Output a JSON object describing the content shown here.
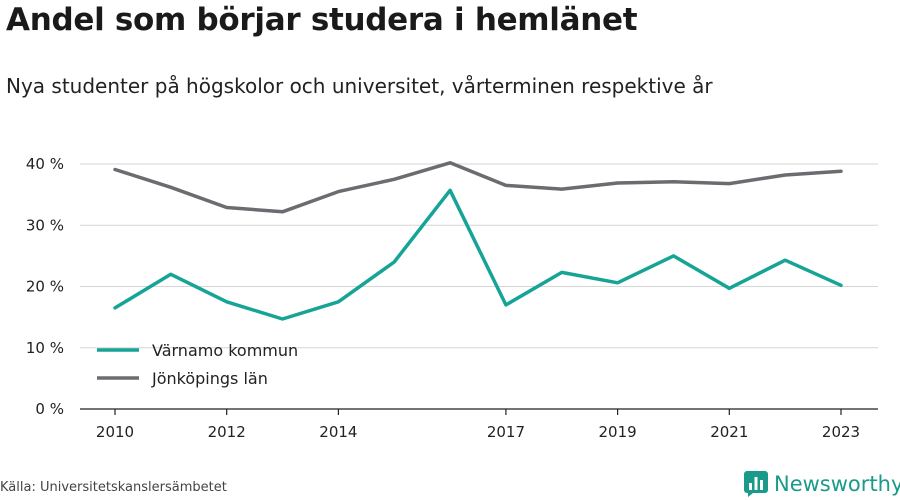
{
  "title": "Andel som börjar studera i hemlänet",
  "subtitle": "Nya studenter på högskolor och universitet, vårterminen respektive år",
  "source": "Källa: Universitetskanslersämbetet",
  "brand": "Newsworthy",
  "colors": {
    "teal": "#16a497",
    "gray": "#6d6b70",
    "grid": "#d6d6d6",
    "axis": "#222222"
  },
  "chart_data": {
    "type": "line",
    "x": [
      2010,
      2011,
      2012,
      2013,
      2014,
      2015,
      2016,
      2017,
      2018,
      2019,
      2020,
      2021,
      2022,
      2023
    ],
    "x_ticks": [
      "2010",
      "2012",
      "2014",
      "2017",
      "2019",
      "2021",
      "2023"
    ],
    "y_ticks": [
      "0 %",
      "10 %",
      "20 %",
      "30 %",
      "40 %"
    ],
    "ylim": [
      0,
      40
    ],
    "series": [
      {
        "name": "Värnamo kommun",
        "color": "#16a497",
        "values": [
          16.5,
          22.0,
          17.5,
          14.7,
          17.5,
          24.0,
          35.7,
          17.0,
          22.3,
          20.6,
          25.0,
          19.7,
          24.3,
          20.2
        ]
      },
      {
        "name": "Jönköpings län",
        "color": "#6d6b70",
        "values": [
          39.1,
          36.2,
          32.9,
          32.2,
          35.5,
          37.5,
          40.2,
          36.5,
          35.9,
          36.9,
          37.1,
          36.8,
          38.2,
          38.8
        ]
      }
    ],
    "grid": true,
    "legend_position": "bottom-left"
  }
}
